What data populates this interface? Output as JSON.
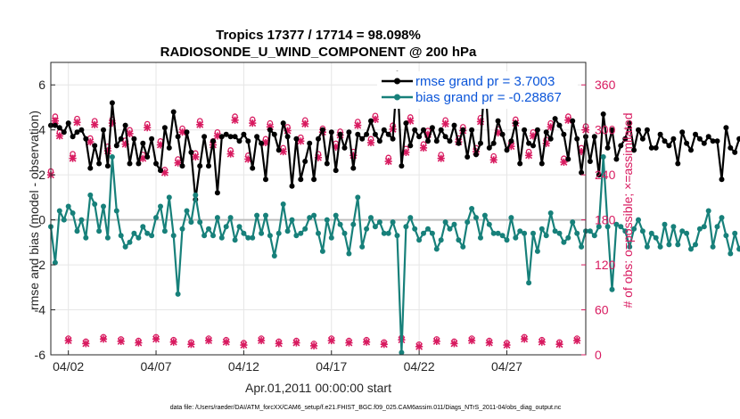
{
  "chart_data": {
    "type": "line",
    "title_line1": "Tropics 17377 / 17714 = 98.098%",
    "title_line2": "RADIOSONDE_U_WIND_COMPONENT @ 200 hPa",
    "ylabel": "rmse and bias (model - observation)",
    "y2label": "# of obs: o=possible; ×=assimilated",
    "xlabel": "Apr.01,2011 00:00:00 start",
    "footer": "data file: /Users/raeder/DAI/ATM_forcXX/CAM6_setup/f.e21.FHIST_BGC.f09_025.CAM6assim.011/Diags_NTrS_2011-04/obs_diag_output.nc",
    "xlim": [
      1.0,
      31.5
    ],
    "ylim": [
      -6,
      7
    ],
    "y2lim": [
      0,
      390
    ],
    "x_ticks": [
      {
        "value": 2,
        "label": "04/02"
      },
      {
        "value": 7,
        "label": "04/07"
      },
      {
        "value": 12,
        "label": "04/12"
      },
      {
        "value": 17,
        "label": "04/17"
      },
      {
        "value": 22,
        "label": "04/22"
      },
      {
        "value": 27,
        "label": "04/27"
      }
    ],
    "y_ticks": [
      {
        "value": -6,
        "label": "-6"
      },
      {
        "value": -4,
        "label": "-4"
      },
      {
        "value": -2,
        "label": "-2"
      },
      {
        "value": 0,
        "label": "0"
      },
      {
        "value": 2,
        "label": "2"
      },
      {
        "value": 4,
        "label": "4"
      },
      {
        "value": 6,
        "label": "6"
      }
    ],
    "y2_ticks": [
      {
        "value": 0,
        "label": "0"
      },
      {
        "value": 60,
        "label": "60"
      },
      {
        "value": 120,
        "label": "120"
      },
      {
        "value": 180,
        "label": "180"
      },
      {
        "value": 240,
        "label": "240"
      },
      {
        "value": 300,
        "label": "300"
      },
      {
        "value": 360,
        "label": "360"
      }
    ],
    "zero_line": 0,
    "x_start": 1.0,
    "x_step": 0.25,
    "series": [
      {
        "name": "rmse grand pr = 3.7003",
        "color": "#000000",
        "values": [
          4.2,
          4.2,
          4.1,
          3.9,
          4.3,
          3.7,
          3.9,
          4.0,
          3.6,
          2.3,
          3.3,
          2.5,
          4.0,
          2.4,
          5.2,
          3.3,
          3.6,
          4.2,
          2.5,
          3.6,
          2.5,
          3.4,
          2.8,
          3.6,
          2.5,
          2.2,
          4.1,
          3.2,
          4.8,
          3.7,
          2.4,
          3.9,
          3.0,
          0.9,
          2.4,
          3.7,
          2.4,
          3.5,
          1.2,
          3.7,
          3.8,
          3.7,
          3.7,
          3.5,
          3.8,
          3.5,
          2.3,
          3.7,
          3.4,
          1.8,
          4.0,
          3.8,
          3.1,
          4.3,
          3.7,
          1.5,
          3.6,
          1.8,
          2.6,
          3.4,
          1.8,
          3.6,
          4.0,
          2.5,
          3.9,
          2.2,
          3.8,
          3.2,
          3.9,
          2.3,
          3.8,
          3.6,
          3.8,
          4.4,
          3.8,
          3.5,
          4.0,
          3.8,
          3.6,
          6.5,
          2.4,
          4.3,
          3.3,
          4.0,
          3.7,
          4.0,
          3.5,
          4.1,
          3.5,
          4.0,
          3.7,
          3.5,
          4.2,
          3.4,
          4.0,
          2.8,
          4.0,
          2.9,
          3.4,
          6.4,
          3.2,
          3.4,
          4.4,
          3.8,
          3.1,
          3.5,
          4.3,
          2.5,
          4.0,
          3.4,
          3.3,
          4.0,
          2.5,
          3.9,
          3.6,
          4.5,
          4.2,
          3.8,
          2.7,
          4.4,
          3.6,
          2.1,
          3.7,
          2.6,
          3.7,
          2.0,
          4.7,
          3.2,
          4.0,
          2.7,
          3.3,
          3.6,
          4.3,
          3.1,
          4.0,
          3.6,
          4.0,
          3.2,
          3.2,
          3.8,
          3.5,
          3.3,
          3.6,
          2.5,
          3.9,
          3.4,
          3.1,
          3.8,
          3.6,
          3.4,
          3.7,
          3.5,
          3.5,
          1.8,
          4.1,
          3.2,
          3.0,
          3.6,
          3.9,
          3.5,
          3.6,
          3.3,
          4.2,
          4.0,
          4.6,
          3.2,
          2.7,
          2.4,
          2.8,
          3.3,
          3.0,
          4.2,
          3.5,
          2.9
        ]
      },
      {
        "name": "bias grand pr = -0.28867",
        "color": "#17807a",
        "values": [
          -0.3,
          -1.9,
          0.4,
          0.0,
          0.6,
          0.3,
          -0.5,
          0.0,
          -0.8,
          1.1,
          0.7,
          -0.5,
          0.6,
          -0.8,
          2.8,
          0.4,
          -0.7,
          -1.2,
          -1.0,
          -0.6,
          -0.8,
          -0.3,
          -0.6,
          -0.7,
          0.1,
          0.6,
          -0.5,
          1.0,
          -0.7,
          -3.3,
          -0.4,
          0.4,
          -0.1,
          1.1,
          -0.1,
          -0.7,
          -0.4,
          -0.7,
          0.1,
          -0.8,
          -0.3,
          0.1,
          -0.9,
          -0.3,
          -0.6,
          -0.8,
          -0.8,
          0.2,
          -0.6,
          0.2,
          -0.7,
          -1.6,
          -0.6,
          0.7,
          -0.5,
          0.0,
          -0.7,
          -0.6,
          -0.4,
          0.1,
          0.2,
          -0.6,
          -1.4,
          0.0,
          -0.8,
          0.2,
          -0.2,
          -0.6,
          -1.5,
          -0.2,
          1.0,
          -1.2,
          -0.4,
          0.1,
          -0.3,
          -0.1,
          -0.6,
          -0.6,
          -0.1,
          -0.7,
          -5.9,
          -0.3,
          0.1,
          -0.4,
          -0.9,
          -0.6,
          -0.4,
          -0.6,
          -1.3,
          -0.9,
          -0.1,
          -0.4,
          -0.2,
          -0.9,
          -1.2,
          -0.1,
          0.5,
          0.1,
          -0.8,
          0.2,
          -0.2,
          -0.6,
          -0.6,
          -0.7,
          -0.9,
          0.1,
          -0.8,
          -0.5,
          -0.6,
          -2.8,
          -0.6,
          -1.4,
          -0.4,
          -0.7,
          0.3,
          -0.5,
          -0.6,
          -1.0,
          -0.8,
          -0.1,
          -0.6,
          -1.2,
          -0.5,
          -0.5,
          -0.7,
          -0.3,
          2.8,
          -0.3,
          -3.1,
          -0.2,
          -0.3,
          -0.5,
          -1.2,
          -0.4,
          0.0,
          -0.5,
          -1.2,
          -0.6,
          -0.8,
          -1.2,
          -0.2,
          -1.1,
          -0.3,
          -1.1,
          -0.5,
          -0.6,
          -1.3,
          -1.1,
          -0.4,
          -0.3,
          0.4,
          -1.2,
          -0.3,
          0.1,
          -0.7,
          -1.5,
          -0.6,
          -1.3,
          -0.9,
          -0.3,
          -1.0,
          -1.5,
          -0.8,
          -0.4,
          -1.0,
          -0.3,
          -0.6,
          1.2,
          -0.4,
          -0.2,
          -0.1,
          -1.3,
          -2.2
        ]
      }
    ],
    "obs_possible_positions": [
      1.0,
      1.25,
      1.5,
      2.0,
      2.25,
      2.5,
      3.0,
      3.25,
      3.5,
      4.0,
      4.25,
      4.5,
      5.0,
      5.25,
      5.5,
      6.0,
      6.25,
      6.5,
      7.0,
      7.25,
      7.5,
      8.0,
      8.25,
      8.5,
      9.0,
      9.25,
      9.5,
      10.0,
      10.25,
      10.5,
      11.0,
      11.25,
      11.5,
      12.0,
      12.25,
      12.5,
      13.0,
      13.25,
      13.5,
      14.0,
      14.25,
      14.5,
      15.0,
      15.25,
      15.5,
      16.0,
      16.25,
      16.5,
      17.0,
      17.25,
      17.5,
      18.0,
      18.25,
      18.5,
      19.0,
      19.25,
      19.5,
      20.0,
      20.25,
      20.5,
      21.0,
      21.25,
      21.5,
      22.0,
      22.25,
      22.5,
      23.0,
      23.25,
      23.5,
      24.0,
      24.25,
      24.5,
      25.0,
      25.25,
      25.5,
      26.0,
      26.25,
      26.5,
      27.0,
      27.25,
      27.5,
      28.0,
      28.25,
      28.5,
      29.0,
      29.25,
      29.5,
      30.0,
      30.25,
      30.5,
      31.0,
      31.25,
      31.5
    ],
    "obs_possible": [
      245,
      318,
      297,
      22,
      268,
      315,
      18,
      289,
      312,
      24,
      278,
      314,
      21,
      286,
      300,
      19,
      267,
      308,
      24,
      285,
      247,
      20,
      261,
      302,
      17,
      269,
      312,
      22,
      285,
      297,
      20,
      273,
      318,
      16,
      266,
      314,
      22,
      288,
      309,
      18,
      276,
      304,
      19,
      290,
      313,
      15,
      268,
      302,
      22,
      282,
      298,
      19,
      271,
      311,
      20,
      288,
      319,
      17,
      263,
      306,
      23,
      275,
      317,
      14,
      281,
      299,
      21,
      267,
      313,
      18,
      289,
      304,
      22,
      276,
      316,
      19,
      265,
      301,
      16,
      283,
      314,
      24,
      271,
      297,
      20,
      287,
      309,
      17,
      262,
      318,
      22,
      276,
      305,
      18,
      2
    ],
    "obs_assimilated": [
      240,
      312,
      292,
      19,
      262,
      310,
      15,
      284,
      307,
      21,
      272,
      309,
      18,
      281,
      295,
      16,
      262,
      303,
      21,
      280,
      243,
      17,
      256,
      297,
      14,
      264,
      307,
      19,
      280,
      292,
      17,
      268,
      313,
      13,
      261,
      309,
      19,
      283,
      304,
      15,
      271,
      299,
      16,
      285,
      308,
      12,
      263,
      297,
      19,
      277,
      293,
      16,
      266,
      306,
      17,
      283,
      314,
      14,
      258,
      301,
      20,
      270,
      312,
      11,
      276,
      294,
      18,
      262,
      308,
      15,
      284,
      299,
      19,
      271,
      311,
      16,
      260,
      296,
      13,
      278,
      309,
      21,
      266,
      292,
      17,
      282,
      304,
      14,
      257,
      313,
      19,
      271,
      300,
      15,
      0
    ]
  }
}
